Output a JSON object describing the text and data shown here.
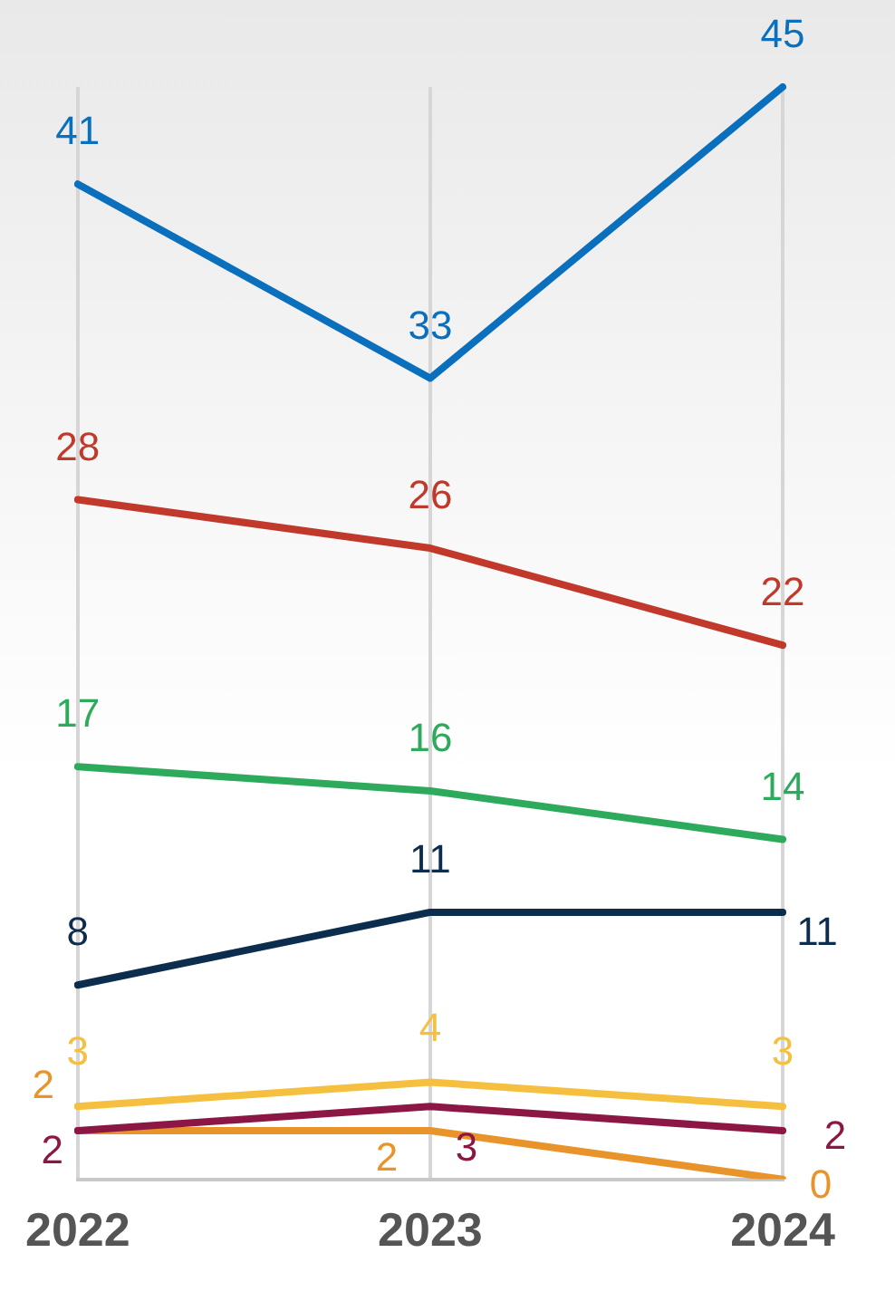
{
  "chart_data": {
    "type": "line",
    "categories": [
      "2022",
      "2023",
      "2024"
    ],
    "series": [
      {
        "color": "#0a6fbd",
        "values": [
          41,
          33,
          45
        ]
      },
      {
        "color": "#c0392b",
        "values": [
          28,
          26,
          22
        ]
      },
      {
        "color": "#2eaa5c",
        "values": [
          17,
          16,
          14
        ]
      },
      {
        "color": "#0c2d4e",
        "values": [
          8,
          11,
          11
        ]
      },
      {
        "color": "#f5c040",
        "values": [
          3,
          4,
          3
        ]
      },
      {
        "color": "#8c1744",
        "values": [
          2,
          3,
          2
        ]
      },
      {
        "color": "#e8942a",
        "values": [
          2,
          2,
          0
        ]
      }
    ],
    "data_labels": true,
    "grid": "x",
    "legend": false,
    "tick_labels": "x",
    "marker": "none",
    "line_style": "solid"
  }
}
